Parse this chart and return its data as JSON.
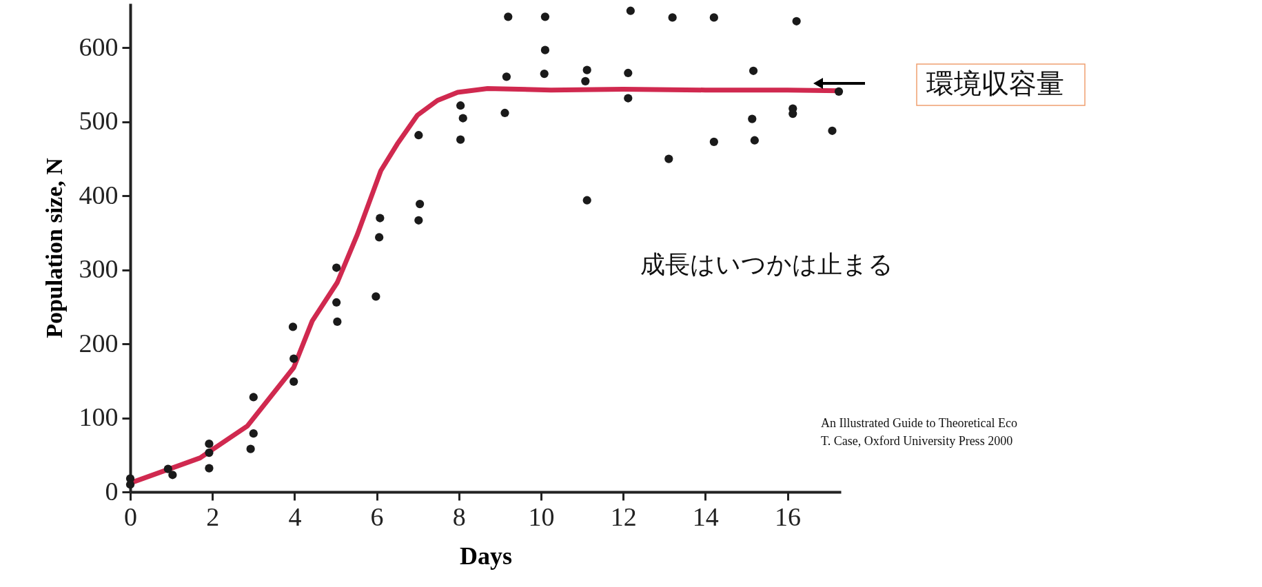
{
  "chart_data": {
    "type": "scatter",
    "xlabel": "Days",
    "ylabel": "Population size, N",
    "xlim": [
      0,
      17.3
    ],
    "ylim": [
      0,
      660
    ],
    "xticks": [
      0,
      2,
      4,
      6,
      8,
      10,
      12,
      14,
      16
    ],
    "yticks": [
      0,
      100,
      200,
      300,
      400,
      500,
      600
    ],
    "grid": false,
    "series": [
      {
        "marker": "circle",
        "color": "#1a1a1a",
        "x": [
          0,
          0,
          0.92,
          1.03,
          1.92,
          1.92,
          1.92,
          3.0,
          3.0,
          2.93,
          3.96,
          3.98,
          3.98,
          5.02,
          5.02,
          5.04,
          5.98,
          6.08,
          6.06,
          7.02,
          7.05,
          7.02,
          8.04,
          8.1,
          8.04,
          9.12,
          9.16,
          9.2,
          10.1,
          10.1,
          10.08,
          11.12,
          11.08,
          11.12,
          12.18,
          12.12,
          12.12,
          13.2,
          13.11,
          14.21,
          14.21,
          15.17,
          15.14,
          15.2,
          16.22,
          16.13,
          16.13,
          17.25,
          17.09
        ],
        "values": [
          18,
          10,
          31,
          23,
          65,
          53,
          32,
          128,
          79,
          58,
          223,
          180,
          149,
          303,
          256,
          230,
          264,
          370,
          344,
          482,
          389,
          367,
          522,
          505,
          476,
          512,
          561,
          642,
          642,
          597,
          565,
          570,
          555,
          394,
          650,
          566,
          532,
          641,
          450,
          641,
          473,
          569,
          504,
          475,
          636,
          518,
          511,
          541,
          488
        ]
      },
      {
        "type": "line",
        "color": "#d0294f",
        "line_style": "solid",
        "marker": "none",
        "x": [
          0,
          1.7,
          2.85,
          3.98,
          4.43,
          5.04,
          5.53,
          6.1,
          6.5,
          6.99,
          7.48,
          7.97,
          8.7,
          10.24,
          12,
          14,
          16,
          17.25
        ],
        "values": [
          12,
          46,
          89,
          168,
          231,
          283,
          348,
          434,
          470,
          509,
          529,
          540,
          545,
          543,
          544,
          543,
          543,
          542
        ]
      }
    ],
    "annotations": [
      "環境収容量",
      "成長はいつかは止まる",
      "An Illustrated Guide to Theoretical Eco\nT. Case, Oxford University Press 2000"
    ]
  }
}
